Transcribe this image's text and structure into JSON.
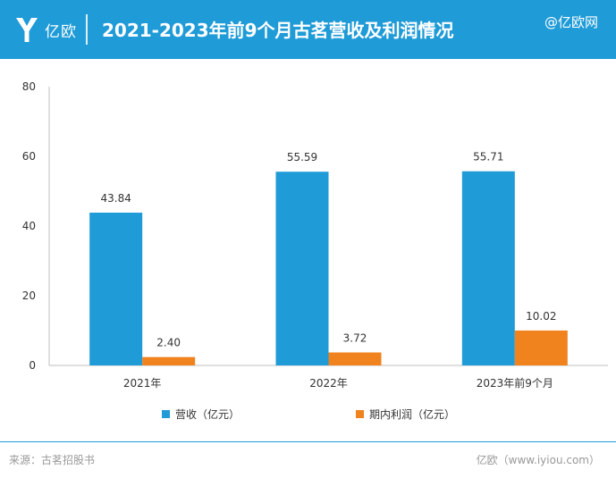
{
  "header": {
    "logo_text": "亿欧",
    "title": "2021-2023年前9个月古茗营收及利润情况",
    "watermark": "@亿欧网"
  },
  "colors": {
    "header_bg": "#1f9bd7",
    "revenue": "#1f9bd7",
    "profit": "#f0831e",
    "axis": "#bfbfbf"
  },
  "icons": {
    "logo": "yiou-logo-icon"
  },
  "chart_data": {
    "type": "bar",
    "categories": [
      "2021年",
      "2022年",
      "2023年前9个月"
    ],
    "series": [
      {
        "name": "营收（亿元）",
        "values": [
          43.84,
          55.59,
          55.71
        ],
        "labels": [
          "43.84",
          "55.59",
          "55.71"
        ]
      },
      {
        "name": "期内利润（亿元）",
        "values": [
          2.4,
          3.72,
          10.02
        ],
        "labels": [
          "2.40",
          "3.72",
          "10.02"
        ]
      }
    ],
    "ylim": [
      0,
      80
    ],
    "yticks": [
      0,
      20,
      40,
      60,
      80
    ],
    "grid": false,
    "legend": "bottom"
  },
  "footer": {
    "source": "来源：古茗招股书",
    "credit": "亿欧（www.iyiou.com）"
  }
}
